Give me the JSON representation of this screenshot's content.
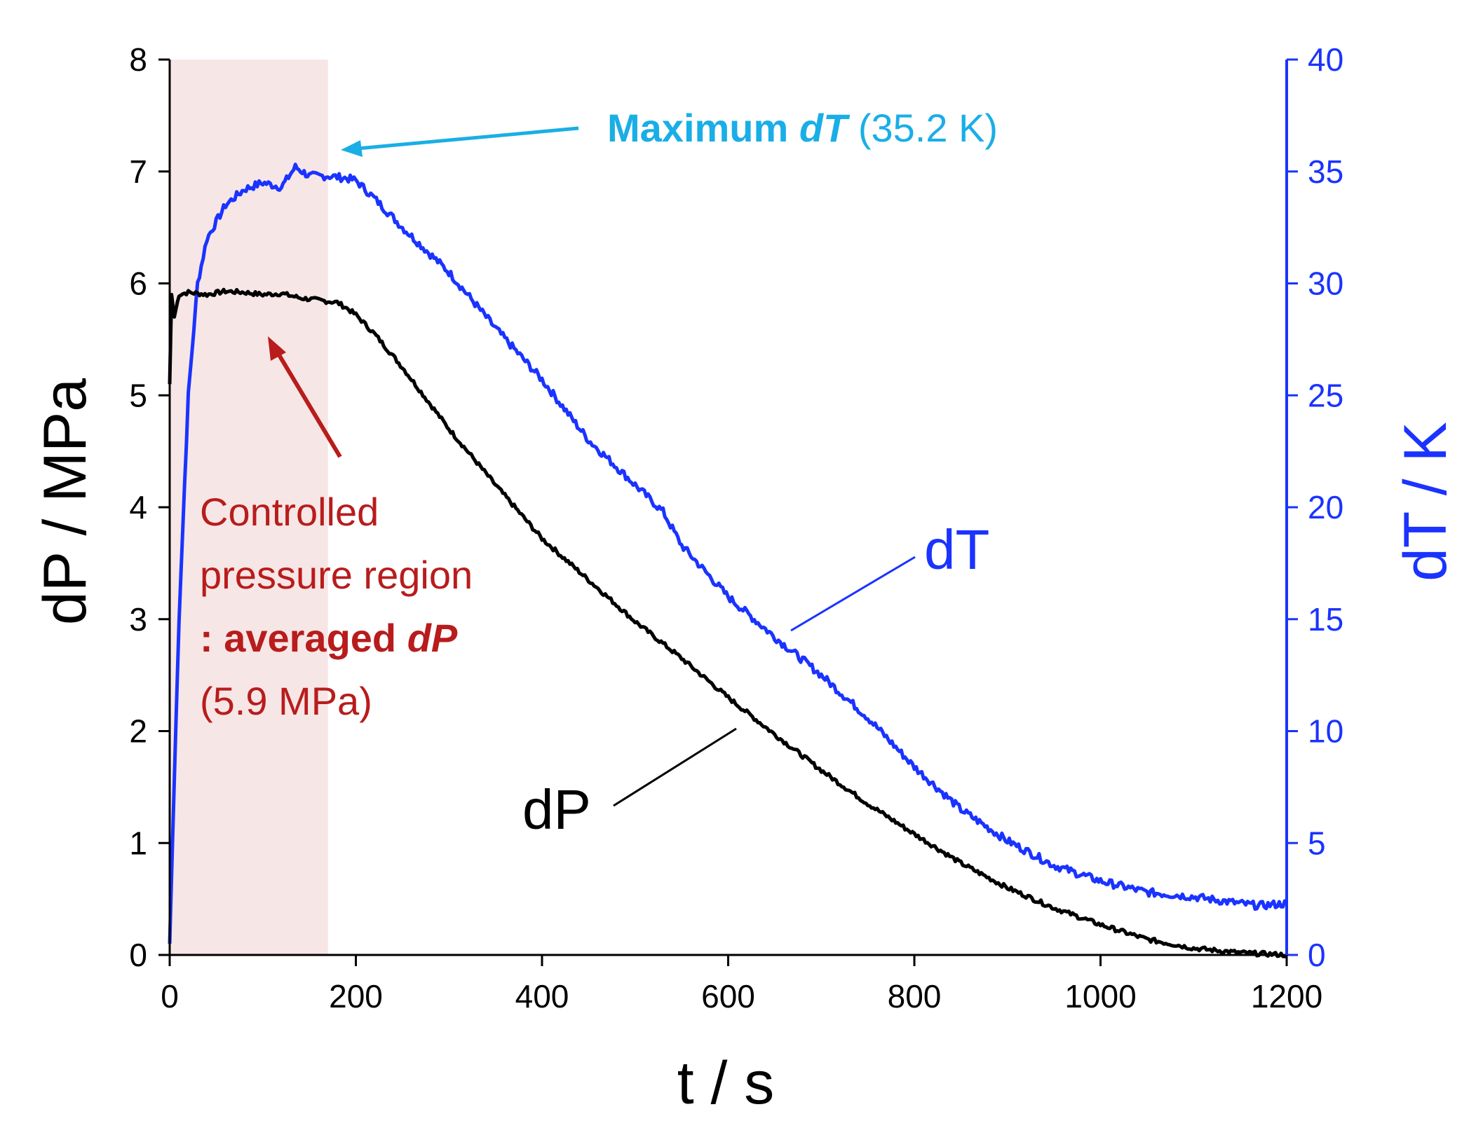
{
  "chart_data": {
    "type": "line",
    "xlabel": "t / s",
    "ylabel_left": "dP / MPa",
    "ylabel_right": "dT / K",
    "xlim": [
      0,
      1200
    ],
    "ylim_left": [
      0,
      8
    ],
    "ylim_right": [
      0,
      40
    ],
    "x_ticks": [
      0,
      200,
      400,
      600,
      800,
      1000,
      1200
    ],
    "y_left_ticks": [
      0,
      1,
      2,
      3,
      4,
      5,
      6,
      7,
      8
    ],
    "y_right_ticks": [
      0,
      5,
      10,
      15,
      20,
      25,
      30,
      35,
      40
    ],
    "grid": false,
    "shaded_region": {
      "x": [
        0,
        170
      ],
      "color": "#f7e6e6"
    },
    "colors": {
      "dP": "#000000",
      "dT": "#1a33ff",
      "annotation_red": "#b81c1c",
      "annotation_cyan": "#1aaee6"
    },
    "series": [
      {
        "name": "dP",
        "label": "dP",
        "axis": "left",
        "x": [
          0,
          2,
          5,
          10,
          20,
          40,
          60,
          80,
          100,
          120,
          140,
          160,
          170,
          180,
          190,
          200,
          220,
          250,
          300,
          350,
          400,
          450,
          500,
          550,
          600,
          650,
          700,
          750,
          800,
          850,
          900,
          950,
          1000,
          1050,
          1100,
          1150,
          1200
        ],
        "values": [
          5.1,
          5.9,
          5.7,
          5.9,
          5.92,
          5.9,
          5.93,
          5.92,
          5.9,
          5.91,
          5.87,
          5.85,
          5.84,
          5.83,
          5.78,
          5.72,
          5.55,
          5.25,
          4.7,
          4.2,
          3.72,
          3.35,
          2.98,
          2.65,
          2.3,
          1.97,
          1.65,
          1.35,
          1.08,
          0.82,
          0.6,
          0.42,
          0.27,
          0.14,
          0.06,
          0.02,
          0.0
        ]
      },
      {
        "name": "dT",
        "label": "dT",
        "axis": "right",
        "x": [
          0,
          3,
          10,
          20,
          30,
          40,
          60,
          80,
          100,
          120,
          135,
          150,
          170,
          190,
          200,
          220,
          250,
          300,
          350,
          400,
          450,
          500,
          530,
          550,
          600,
          650,
          700,
          750,
          800,
          850,
          900,
          950,
          1000,
          1050,
          1100,
          1150,
          1170,
          1200
        ],
        "values": [
          0.5,
          5,
          15,
          25,
          30,
          32,
          33.5,
          34.2,
          34.5,
          34.3,
          35.2,
          34.8,
          34.8,
          34.7,
          34.6,
          33.8,
          32.5,
          30.5,
          28,
          25.7,
          23,
          21,
          19.8,
          18.3,
          16,
          14.2,
          12.5,
          10.6,
          8.4,
          6.5,
          5.1,
          4.0,
          3.3,
          2.8,
          2.6,
          2.3,
          2.2,
          2.3
        ]
      }
    ],
    "annotations": {
      "max_dt_bold": "Maximum",
      "max_dt_italic": "dT",
      "max_dt_value": "(35.2 K)",
      "region_line1": "Controlled",
      "region_line2": "pressure region",
      "region_bold": ": averaged",
      "region_italic": "dP",
      "region_value": "(5.9 MPa)"
    }
  }
}
